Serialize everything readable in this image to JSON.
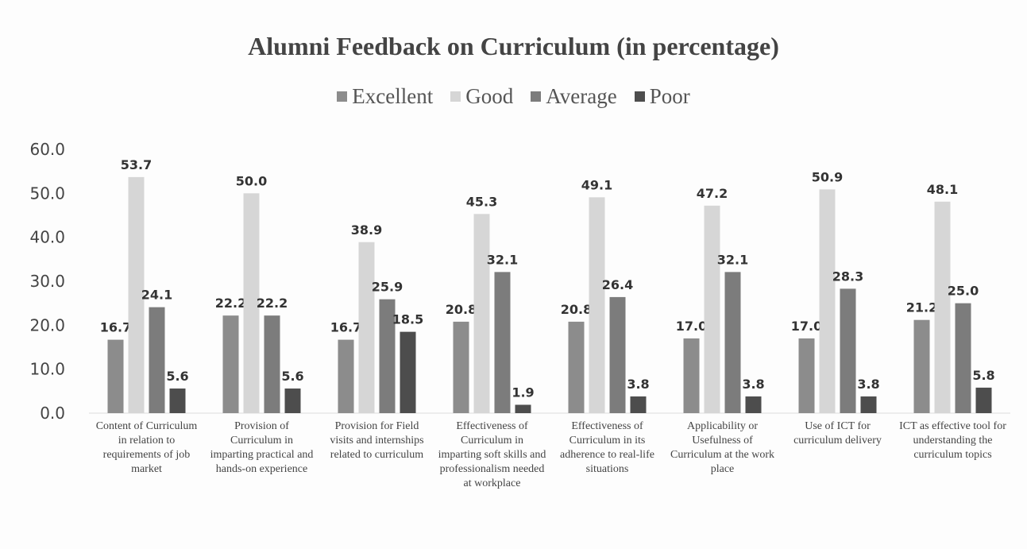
{
  "chart_data": {
    "type": "bar",
    "title": "Alumni Feedback on Curriculum (in percentage)",
    "categories": [
      "Content of Curriculum in relation to requirements of job market",
      "Provision of Curriculum in imparting practical and hands-on experience",
      "Provision for Field visits and internships related to curriculum",
      "Effectiveness of Curriculum in imparting soft skills and professionalism needed at workplace",
      "Effectiveness of Curriculum in its adherence to real-life situations",
      "Applicability or Usefulness of Curriculum at the work place",
      "Use of ICT for curriculum delivery",
      "ICT as effective tool for understanding the curriculum topics"
    ],
    "series": [
      {
        "name": "Excellent",
        "color": "#8c8c8c",
        "values": [
          16.7,
          22.2,
          16.7,
          20.8,
          20.8,
          17.0,
          17.0,
          21.2
        ],
        "value_labels": [
          "16.7",
          "22.2",
          "16.7",
          "20.8",
          "20.8",
          "17.0",
          "17.0",
          "21.2"
        ]
      },
      {
        "name": "Good",
        "color": "#d6d6d6",
        "values": [
          53.7,
          50.0,
          38.9,
          45.3,
          49.1,
          47.2,
          50.9,
          48.1
        ],
        "value_labels": [
          "53.7",
          "50.0",
          "38.9",
          "45.3",
          "49.1",
          "47.2",
          "50.9",
          "48.1"
        ]
      },
      {
        "name": "Average",
        "color": "#7c7c7c",
        "values": [
          24.1,
          22.2,
          25.9,
          32.1,
          26.4,
          32.1,
          28.3,
          25.0
        ],
        "value_labels": [
          "24.1",
          "22.2",
          "25.9",
          "32.1",
          "26.4",
          "32.1",
          "28.3",
          "25.0"
        ]
      },
      {
        "name": "Poor",
        "color": "#4d4d4d",
        "values": [
          5.6,
          5.6,
          18.5,
          1.9,
          3.8,
          3.8,
          3.8,
          5.8
        ],
        "value_labels": [
          "5.6",
          "5.6",
          "18.5",
          "1.9",
          "3.8",
          "3.8",
          "3.8",
          "5.8"
        ]
      }
    ],
    "ylim": [
      0,
      60
    ],
    "yticks": [
      {
        "value": 0,
        "label": "0.0"
      },
      {
        "value": 10,
        "label": "10.0"
      },
      {
        "value": 20,
        "label": "20.0"
      },
      {
        "value": 30,
        "label": "30.0"
      },
      {
        "value": 40,
        "label": "40.0"
      },
      {
        "value": 50,
        "label": "50.0"
      },
      {
        "value": 60,
        "label": "60.0"
      }
    ],
    "grid": false
  }
}
